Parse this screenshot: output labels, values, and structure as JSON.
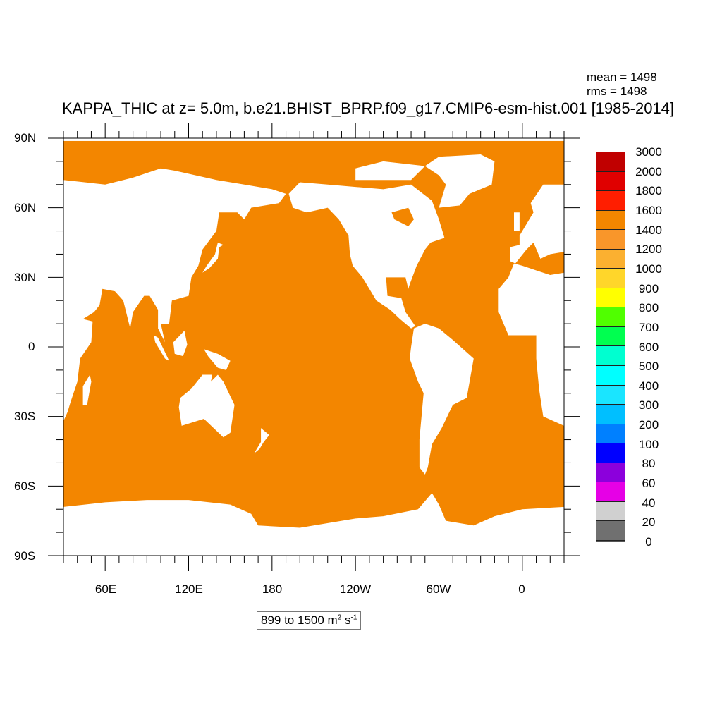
{
  "title": "KAPPA_THIC at z=   5.0m, b.e21.BHIST_BPRP.f09_g17.CMIP6-esm-hist.001 [1985-2014]",
  "stats": {
    "mean": "mean = 1498",
    "rms": "rms = 1498"
  },
  "range_box": {
    "text": "899 to 1500 m",
    "unit_exp1": "2",
    "unit_mid": " s",
    "unit_exp2": "-1"
  },
  "colors": {
    "ocean": "#f38600",
    "land": "#ffffff"
  },
  "map": {
    "projection": "cylindrical equidistant",
    "lon_range": [
      30,
      390
    ],
    "lat_range": [
      -90,
      90
    ],
    "x_ticks": [
      "60E",
      "120E",
      "180",
      "120W",
      "60W",
      "0"
    ],
    "y_ticks": [
      "90N",
      "60N",
      "30N",
      "0",
      "30S",
      "60S",
      "90S"
    ]
  },
  "colorbar": {
    "labels": [
      "3000",
      "2000",
      "1800",
      "1600",
      "1400",
      "1200",
      "1000",
      "900",
      "800",
      "700",
      "600",
      "500",
      "400",
      "300",
      "200",
      "100",
      "80",
      "60",
      "40",
      "20",
      "0"
    ],
    "colors": [
      "#c00000",
      "#e00000",
      "#ff1e00",
      "#f38600",
      "#f9962a",
      "#fbb030",
      "#ffd62a",
      "#ffff00",
      "#50ff00",
      "#00ff50",
      "#00ffd0",
      "#00ffff",
      "#1ae5ff",
      "#00bfff",
      "#0080ff",
      "#0000ff",
      "#8c00dc",
      "#e600e6",
      "#d0d0d0",
      "#707070"
    ]
  }
}
